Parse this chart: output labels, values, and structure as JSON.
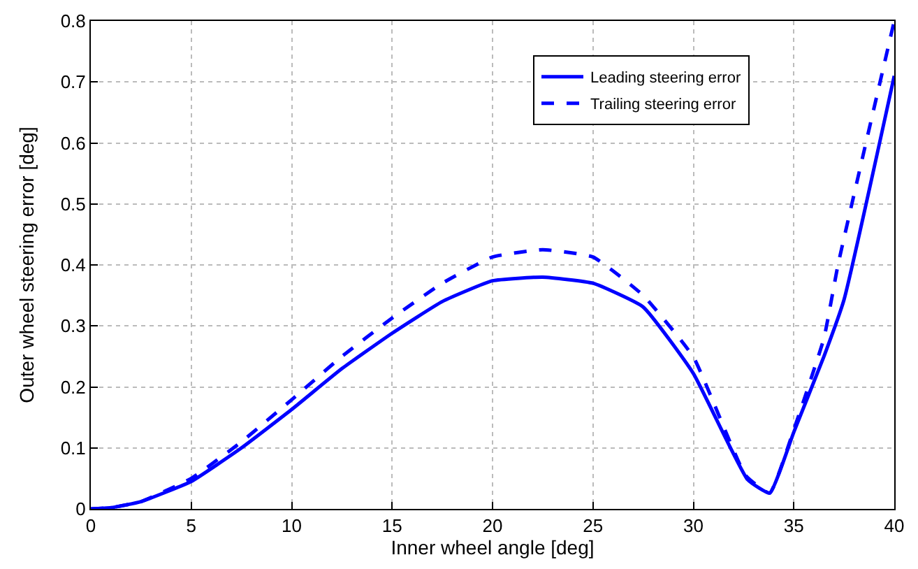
{
  "chart_data": {
    "type": "line",
    "xlabel": "Inner wheel angle [deg]",
    "ylabel": "Outer wheel steering error [deg]",
    "xlim": [
      0,
      40
    ],
    "ylim": [
      0,
      0.8
    ],
    "xticks": [
      0,
      5,
      10,
      15,
      20,
      25,
      30,
      35,
      40
    ],
    "yticks": [
      0,
      0.1,
      0.2,
      0.3,
      0.4,
      0.5,
      0.6,
      0.7,
      0.8
    ],
    "grid": true,
    "legend": "top right",
    "series": [
      {
        "name": "Leading steering error",
        "color": "#0000ff",
        "line_style": "solid",
        "x": [
          0,
          1,
          2.5,
          5,
          7.5,
          10,
          12.5,
          15,
          17.5,
          20,
          22.5,
          25,
          27.5,
          30,
          32.7,
          33.8,
          35,
          36.5,
          37.5,
          40
        ],
        "values": [
          0,
          0.002,
          0.012,
          0.045,
          0.1,
          0.163,
          0.23,
          0.288,
          0.34,
          0.374,
          0.38,
          0.37,
          0.331,
          0.222,
          0.048,
          0.026,
          0.126,
          0.25,
          0.343,
          0.71
        ]
      },
      {
        "name": "Trailing steering error",
        "color": "#0000ff",
        "line_style": "dashed",
        "x": [
          0,
          1,
          2.5,
          5,
          7.5,
          10,
          12.5,
          15,
          17.5,
          20,
          22.5,
          25,
          27.5,
          30,
          32.6,
          33.8,
          35,
          36.5,
          37.2,
          40
        ],
        "values": [
          0,
          0.002,
          0.012,
          0.05,
          0.11,
          0.179,
          0.25,
          0.313,
          0.37,
          0.413,
          0.425,
          0.413,
          0.35,
          0.249,
          0.055,
          0.026,
          0.13,
          0.28,
          0.4,
          0.8
        ]
      }
    ]
  }
}
